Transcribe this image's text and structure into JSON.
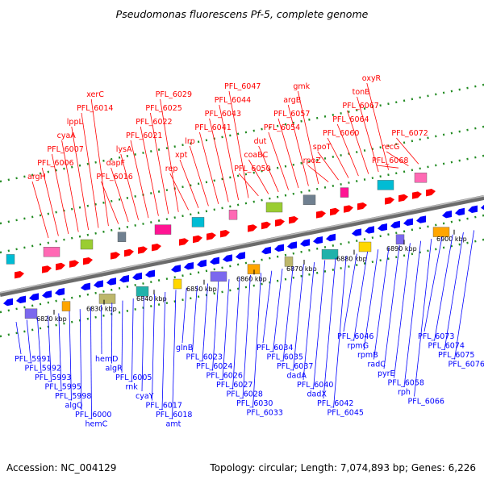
{
  "title": "Pseudomonas fluorescens Pf-5, complete genome",
  "footer": {
    "accession": "Accession: NC_004129",
    "summary": "Topology: circular; Length: 7,074,893 bp; Genes: 6,226"
  },
  "colors": {
    "forward": "#ff0000",
    "reverse": "#0000ff",
    "axis": "#888888",
    "tick": "#228b22"
  },
  "scale_ticks": [
    "6820 kbp",
    "6830 kbp",
    "6840 kbp",
    "6850 kbp",
    "6860 kbp",
    "6870 kbp",
    "6880 kbp",
    "6890 kbp",
    "6900 kbp"
  ],
  "forward_labels": [
    "argH",
    "PFL_6006",
    "PFL_6007",
    "cyaA",
    "lppL",
    "PFL_6014",
    "xerC",
    "PFL_6016",
    "dapF",
    "lysA",
    "PFL_6021",
    "PFL_6022",
    "PFL_6025",
    "PFL_6029",
    "rep",
    "xpt",
    "lrp",
    "PFL_6041",
    "PFL_6043",
    "PFL_6044",
    "PFL_6047",
    "PFL_6050",
    "coaBC",
    "dut",
    "PFL_6054",
    "PFL_6057",
    "argB",
    "gmk",
    "rpoZ",
    "spoT",
    "PFL_6060",
    "PFL_6064",
    "PFL_6067",
    "tonB",
    "oxyR",
    "PFL_6068",
    "recG",
    "PFL_6072"
  ],
  "reverse_labels": [
    "PFL_5991",
    "PFL_5992",
    "PFL_5993",
    "PFL_5995",
    "PFL_5998",
    "algQ",
    "PFL_6000",
    "hemC",
    "hemD",
    "algR",
    "PFL_6005",
    "rnk",
    "cyaY",
    "PFL_6017",
    "PFL_6018",
    "amt",
    "glnB",
    "PFL_6023",
    "PFL_6024",
    "PFL_6026",
    "PFL_6027",
    "PFL_6028",
    "PFL_6030",
    "PFL_6033",
    "PFL_6034",
    "PFL_6035",
    "PFL_6037",
    "dadA",
    "PFL_6040",
    "dadX",
    "PFL_6042",
    "PFL_6045",
    "PFL_6046",
    "rpmG",
    "rpmB",
    "radC",
    "pyrE",
    "PFL_6058",
    "rph",
    "PFL_6066",
    "PFL_6073",
    "PFL_6074",
    "PFL_6075",
    "PFL_6076"
  ]
}
